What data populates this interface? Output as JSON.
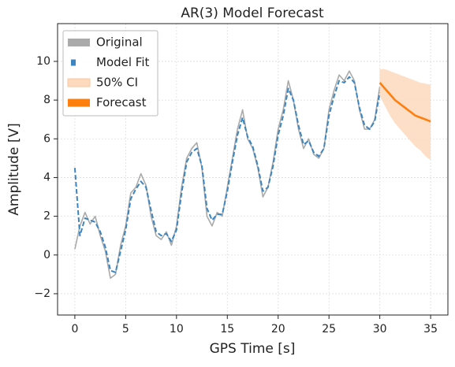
{
  "chart_data": {
    "type": "line",
    "title": "AR(3) Model Forecast",
    "x_label": "GPS Time [s]",
    "y_label": "Amplitude [V]",
    "xlim": [
      -1.7,
      36.7
    ],
    "ylim": [
      -3.1,
      11.95
    ],
    "xticks": [
      0,
      5,
      10,
      15,
      20,
      25,
      30,
      35
    ],
    "yticks": [
      {
        "value": -2,
        "label": "−2"
      },
      0,
      2,
      4,
      6,
      8,
      10
    ],
    "grid": true,
    "legend": "upper left",
    "x": [
      0,
      0.5,
      1,
      1.5,
      2,
      2.5,
      3,
      3.5,
      4,
      4.5,
      5,
      5.5,
      6,
      6.5,
      7,
      7.5,
      8,
      8.5,
      9,
      9.5,
      10,
      10.5,
      11,
      11.5,
      12,
      12.5,
      13,
      13.5,
      14,
      14.5,
      15,
      15.5,
      16,
      16.5,
      17,
      17.5,
      18,
      18.5,
      19,
      19.5,
      20,
      20.5,
      21,
      21.5,
      22,
      22.5,
      23,
      23.5,
      24,
      24.5,
      25,
      25.5,
      26,
      26.5,
      27,
      27.5,
      28,
      28.5,
      29,
      29.5,
      30
    ],
    "series": [
      {
        "name": "Original",
        "color": "#aaaaaa",
        "values": [
          0.3,
          1.5,
          2.2,
          1.6,
          2.0,
          1.0,
          0.2,
          -1.2,
          -1.0,
          0.5,
          1.5,
          3.2,
          3.5,
          4.2,
          3.6,
          2.0,
          1.0,
          0.8,
          1.2,
          0.5,
          1.5,
          3.5,
          5.0,
          5.5,
          5.8,
          4.5,
          2.0,
          1.5,
          2.2,
          2.0,
          3.5,
          5.0,
          6.5,
          7.5,
          6.0,
          5.5,
          4.5,
          3.0,
          3.5,
          4.8,
          6.5,
          7.5,
          9.0,
          8.0,
          6.5,
          5.5,
          6.0,
          5.2,
          5.0,
          5.5,
          7.5,
          8.5,
          9.3,
          9.0,
          9.5,
          9.0,
          7.5,
          6.5,
          6.5,
          7.0,
          8.7
        ]
      },
      {
        "name": "Model Fit",
        "color": "#3d85c0",
        "linestyle": "dashed",
        "values": [
          4.5,
          1.0,
          1.9,
          1.8,
          1.7,
          1.2,
          0.4,
          -0.8,
          -0.9,
          0.2,
          1.3,
          2.9,
          3.4,
          3.8,
          3.5,
          2.3,
          1.2,
          1.0,
          1.1,
          0.7,
          1.3,
          3.2,
          4.8,
          5.3,
          5.5,
          4.6,
          2.4,
          1.8,
          2.1,
          2.1,
          3.3,
          4.8,
          6.2,
          7.1,
          6.1,
          5.6,
          4.6,
          3.3,
          3.5,
          4.6,
          6.2,
          7.2,
          8.6,
          8.0,
          6.7,
          5.7,
          5.9,
          5.3,
          5.1,
          5.5,
          7.2,
          8.2,
          9.0,
          8.9,
          9.2,
          8.9,
          7.6,
          6.7,
          6.5,
          6.9,
          8.4
        ]
      },
      {
        "name": "50% CI",
        "color": "#fdd9bd",
        "x": [
          30,
          30.5,
          31,
          31.5,
          32,
          32.5,
          33,
          33.5,
          34,
          34.5,
          35
        ],
        "lower": [
          8.2,
          7.7,
          7.2,
          6.8,
          6.5,
          6.2,
          5.9,
          5.6,
          5.4,
          5.1,
          4.9
        ],
        "upper": [
          9.6,
          9.6,
          9.5,
          9.4,
          9.3,
          9.2,
          9.1,
          9.0,
          8.9,
          8.85,
          8.8
        ]
      },
      {
        "name": "Forecast",
        "color": "#ff7f0e",
        "x": [
          30,
          30.5,
          31,
          31.5,
          32,
          32.5,
          33,
          33.5,
          34,
          34.5,
          35
        ],
        "values": [
          8.9,
          8.6,
          8.3,
          8.0,
          7.8,
          7.6,
          7.4,
          7.2,
          7.1,
          7.0,
          6.9
        ]
      }
    ]
  }
}
